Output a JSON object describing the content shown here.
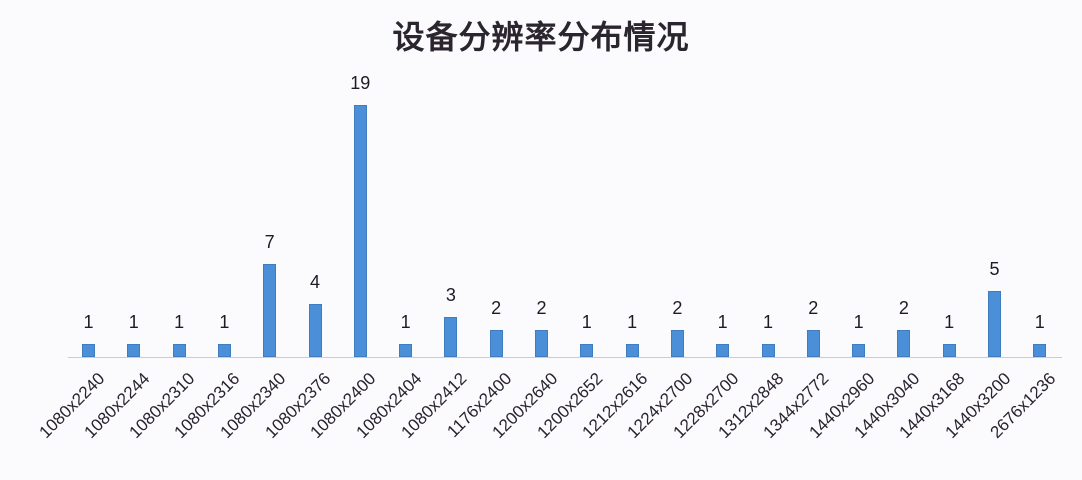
{
  "chart_data": {
    "type": "bar",
    "title": "设备分辨率分布情况",
    "xlabel": "",
    "ylabel": "",
    "categories": [
      "1080x2240",
      "1080x2244",
      "1080x2310",
      "1080x2316",
      "1080x2340",
      "1080x2376",
      "1080x2400",
      "1080x2404",
      "1080x2412",
      "1176x2400",
      "1200x2640",
      "1200x2652",
      "1212x2616",
      "1224x2700",
      "1228x2700",
      "1312x2848",
      "1344x2772",
      "1440x2960",
      "1440x3040",
      "1440x3168",
      "1440x3200",
      "2676x1236"
    ],
    "values": [
      1,
      1,
      1,
      1,
      7,
      4,
      19,
      1,
      3,
      2,
      2,
      1,
      1,
      2,
      1,
      1,
      2,
      1,
      2,
      1,
      5,
      1
    ],
    "data_labels": true,
    "grid": false,
    "legend": null,
    "y_axis_visible": false,
    "ylim": [
      0,
      19
    ],
    "bar_color": "#4a8fd8",
    "label_rotation": -45
  }
}
